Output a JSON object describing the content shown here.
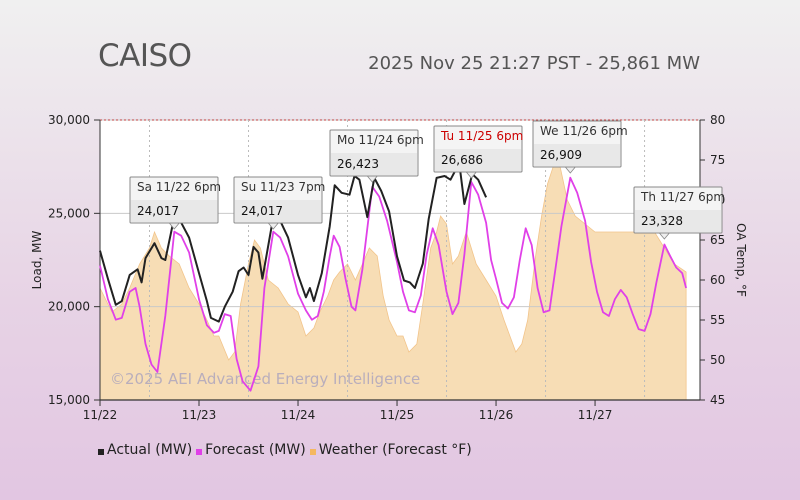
{
  "header": {
    "title": "CAISO",
    "status": "2025 Nov 25 21:27 PST - 25,861 MW"
  },
  "colors": {
    "actual": "#222222",
    "forecast": "#e040e8",
    "weather": "#f7ddb5",
    "weather_stroke": "#f2c48a",
    "tooltip_bg": "#eeeeee",
    "tooltip_highlight": "#cc0000"
  },
  "watermark": "©2025 AEI Advanced Energy Intelligence",
  "legend": [
    {
      "label": "Actual (MW)",
      "color": "#222222"
    },
    {
      "label": "Forecast (MW)",
      "color": "#e040e8"
    },
    {
      "label": "Weather (Forecast °F)",
      "color": "#f5b860"
    }
  ],
  "chart_data": {
    "type": "line",
    "xlabel": "",
    "ylabel": "Load, MW",
    "y2label": "OA Temp, °F",
    "x_ticks": [
      "11/22",
      "11/23",
      "11/24",
      "11/25",
      "11/26",
      "11/27"
    ],
    "x_range_days": [
      0,
      6
    ],
    "ylim": [
      15000,
      30000
    ],
    "y_ticks": [
      "15,000",
      "20,000",
      "25,000",
      "30,000"
    ],
    "y2lim": [
      45,
      80
    ],
    "y2_ticks": [
      "45",
      "50",
      "55",
      "60",
      "65",
      "70",
      "75",
      "80"
    ],
    "series": [
      {
        "name": "Actual (MW)",
        "points": [
          [
            0,
            23000
          ],
          [
            0.08,
            21500
          ],
          [
            0.16,
            20100
          ],
          [
            0.22,
            20300
          ],
          [
            0.3,
            21700
          ],
          [
            0.38,
            22000
          ],
          [
            0.42,
            21300
          ],
          [
            0.46,
            22600
          ],
          [
            0.55,
            23400
          ],
          [
            0.62,
            22600
          ],
          [
            0.66,
            22500
          ],
          [
            0.75,
            24800
          ],
          [
            0.82,
            24500
          ],
          [
            0.9,
            23700
          ],
          [
            1.0,
            21800
          ],
          [
            1.08,
            20300
          ],
          [
            1.12,
            19400
          ],
          [
            1.2,
            19200
          ],
          [
            1.26,
            20000
          ],
          [
            1.34,
            20800
          ],
          [
            1.4,
            21900
          ],
          [
            1.45,
            22100
          ],
          [
            1.5,
            21700
          ],
          [
            1.55,
            23200
          ],
          [
            1.6,
            22900
          ],
          [
            1.64,
            21500
          ],
          [
            1.75,
            24800
          ],
          [
            1.82,
            24600
          ],
          [
            1.9,
            23700
          ],
          [
            2.0,
            21700
          ],
          [
            2.08,
            20500
          ],
          [
            2.12,
            21000
          ],
          [
            2.16,
            20300
          ],
          [
            2.24,
            21800
          ],
          [
            2.32,
            24300
          ],
          [
            2.37,
            26500
          ],
          [
            2.44,
            26100
          ],
          [
            2.52,
            26000
          ],
          [
            2.57,
            27000
          ],
          [
            2.62,
            26800
          ],
          [
            2.7,
            24800
          ],
          [
            2.77,
            26900
          ],
          [
            2.84,
            26200
          ],
          [
            2.92,
            25100
          ],
          [
            3.0,
            22700
          ],
          [
            3.07,
            21400
          ],
          [
            3.13,
            21300
          ],
          [
            3.18,
            21000
          ],
          [
            3.26,
            22300
          ],
          [
            3.32,
            24700
          ],
          [
            3.4,
            26900
          ],
          [
            3.48,
            27000
          ],
          [
            3.54,
            26800
          ],
          [
            3.6,
            27400
          ],
          [
            3.64,
            27200
          ],
          [
            3.68,
            25500
          ],
          [
            3.76,
            27100
          ],
          [
            3.82,
            26800
          ],
          [
            3.9,
            25861
          ]
        ]
      },
      {
        "name": "Forecast (MW)",
        "points": [
          [
            0,
            22200
          ],
          [
            0.08,
            20400
          ],
          [
            0.16,
            19300
          ],
          [
            0.22,
            19400
          ],
          [
            0.3,
            20800
          ],
          [
            0.36,
            21000
          ],
          [
            0.4,
            20000
          ],
          [
            0.46,
            18000
          ],
          [
            0.52,
            16900
          ],
          [
            0.58,
            16500
          ],
          [
            0.66,
            19500
          ],
          [
            0.75,
            24017
          ],
          [
            0.82,
            23800
          ],
          [
            0.9,
            22900
          ],
          [
            1.0,
            20400
          ],
          [
            1.08,
            19000
          ],
          [
            1.15,
            18600
          ],
          [
            1.2,
            18700
          ],
          [
            1.26,
            19600
          ],
          [
            1.32,
            19500
          ],
          [
            1.38,
            17200
          ],
          [
            1.44,
            16000
          ],
          [
            1.52,
            15500
          ],
          [
            1.6,
            16800
          ],
          [
            1.66,
            21000
          ],
          [
            1.75,
            24017
          ],
          [
            1.82,
            23700
          ],
          [
            1.9,
            22700
          ],
          [
            2.0,
            20700
          ],
          [
            2.08,
            19800
          ],
          [
            2.14,
            19300
          ],
          [
            2.2,
            19500
          ],
          [
            2.26,
            20800
          ],
          [
            2.32,
            22700
          ],
          [
            2.36,
            23800
          ],
          [
            2.42,
            23200
          ],
          [
            2.48,
            21500
          ],
          [
            2.54,
            20000
          ],
          [
            2.58,
            19800
          ],
          [
            2.65,
            22000
          ],
          [
            2.75,
            26423
          ],
          [
            2.82,
            25900
          ],
          [
            2.9,
            24600
          ],
          [
            3.0,
            22400
          ],
          [
            3.06,
            20800
          ],
          [
            3.12,
            19800
          ],
          [
            3.18,
            19700
          ],
          [
            3.24,
            20600
          ],
          [
            3.3,
            22800
          ],
          [
            3.36,
            24200
          ],
          [
            3.42,
            23300
          ],
          [
            3.5,
            20800
          ],
          [
            3.56,
            19600
          ],
          [
            3.62,
            20200
          ],
          [
            3.68,
            22800
          ],
          [
            3.75,
            26686
          ],
          [
            3.82,
            26000
          ],
          [
            3.9,
            24500
          ],
          [
            3.95,
            22500
          ],
          [
            4.0,
            21500
          ],
          [
            4.06,
            20200
          ],
          [
            4.12,
            19900
          ],
          [
            4.18,
            20500
          ],
          [
            4.24,
            22500
          ],
          [
            4.3,
            24200
          ],
          [
            4.36,
            23300
          ],
          [
            4.42,
            21000
          ],
          [
            4.48,
            19700
          ],
          [
            4.54,
            19800
          ],
          [
            4.6,
            22000
          ],
          [
            4.66,
            24300
          ],
          [
            4.75,
            26909
          ],
          [
            4.82,
            26100
          ],
          [
            4.9,
            24600
          ],
          [
            4.96,
            22400
          ],
          [
            5.02,
            20800
          ],
          [
            5.08,
            19700
          ],
          [
            5.14,
            19500
          ],
          [
            5.2,
            20400
          ],
          [
            5.26,
            20900
          ],
          [
            5.32,
            20500
          ],
          [
            5.38,
            19600
          ],
          [
            5.44,
            18800
          ],
          [
            5.5,
            18700
          ],
          [
            5.56,
            19600
          ],
          [
            5.62,
            21300
          ],
          [
            5.7,
            23328
          ],
          [
            5.76,
            22700
          ],
          [
            5.82,
            22100
          ],
          [
            5.88,
            21800
          ],
          [
            5.92,
            21000
          ]
        ]
      },
      {
        "name": "Weather (Forecast °F)",
        "points": [
          [
            0,
            59
          ],
          [
            0.12,
            56
          ],
          [
            0.22,
            57
          ],
          [
            0.3,
            59
          ],
          [
            0.4,
            62
          ],
          [
            0.5,
            64
          ],
          [
            0.55,
            66
          ],
          [
            0.62,
            64
          ],
          [
            0.7,
            63
          ],
          [
            0.8,
            62
          ],
          [
            0.9,
            59
          ],
          [
            1.0,
            57
          ],
          [
            1.08,
            55
          ],
          [
            1.15,
            53
          ],
          [
            1.2,
            53
          ],
          [
            1.3,
            50
          ],
          [
            1.36,
            51
          ],
          [
            1.42,
            57
          ],
          [
            1.5,
            62
          ],
          [
            1.56,
            65
          ],
          [
            1.62,
            64
          ],
          [
            1.7,
            60
          ],
          [
            1.8,
            59
          ],
          [
            1.9,
            57
          ],
          [
            2.0,
            56
          ],
          [
            2.08,
            53
          ],
          [
            2.16,
            54
          ],
          [
            2.22,
            56
          ],
          [
            2.3,
            58
          ],
          [
            2.36,
            60
          ],
          [
            2.42,
            61
          ],
          [
            2.5,
            62
          ],
          [
            2.58,
            60
          ],
          [
            2.65,
            62
          ],
          [
            2.72,
            64
          ],
          [
            2.8,
            63
          ],
          [
            2.86,
            58
          ],
          [
            2.92,
            55
          ],
          [
            3.0,
            53
          ],
          [
            3.06,
            53
          ],
          [
            3.12,
            51
          ],
          [
            3.2,
            52
          ],
          [
            3.26,
            57
          ],
          [
            3.34,
            64
          ],
          [
            3.4,
            66
          ],
          [
            3.44,
            68
          ],
          [
            3.5,
            67
          ],
          [
            3.56,
            62
          ],
          [
            3.62,
            63
          ],
          [
            3.7,
            66
          ],
          [
            3.8,
            62
          ],
          [
            3.9,
            60
          ],
          [
            4.0,
            58
          ],
          [
            4.08,
            55
          ],
          [
            4.14,
            53
          ],
          [
            4.2,
            51
          ],
          [
            4.26,
            52
          ],
          [
            4.32,
            55
          ],
          [
            4.4,
            63
          ],
          [
            4.46,
            68
          ],
          [
            4.52,
            72
          ],
          [
            4.6,
            75
          ],
          [
            4.65,
            74
          ],
          [
            4.72,
            70
          ],
          [
            4.8,
            68
          ],
          [
            4.9,
            67
          ],
          [
            5.0,
            66
          ],
          [
            5.6,
            66
          ],
          [
            5.7,
            64
          ],
          [
            5.8,
            62
          ],
          [
            5.92,
            61
          ]
        ]
      }
    ],
    "annotations": [
      {
        "label": "Sa 11/22 6pm",
        "value": "24,017",
        "x": 0.75,
        "y": 24017,
        "highlight": false
      },
      {
        "label": "Su 11/23 7pm",
        "value": "24,017",
        "x": 1.75,
        "y": 24017,
        "highlight": false
      },
      {
        "label": "Mo 11/24 6pm",
        "value": "26,423",
        "x": 2.75,
        "y": 26423,
        "highlight": false
      },
      {
        "label": "Tu 11/25 6pm",
        "value": "26,686",
        "x": 3.75,
        "y": 26686,
        "highlight": true
      },
      {
        "label": "We 11/26 6pm",
        "value": "26,909",
        "x": 4.75,
        "y": 26909,
        "highlight": false
      },
      {
        "label": "Th 11/27 6pm",
        "value": "23,328",
        "x": 5.7,
        "y": 23328,
        "highlight": false
      }
    ],
    "grid": true,
    "legend_position": "bottom-left"
  }
}
